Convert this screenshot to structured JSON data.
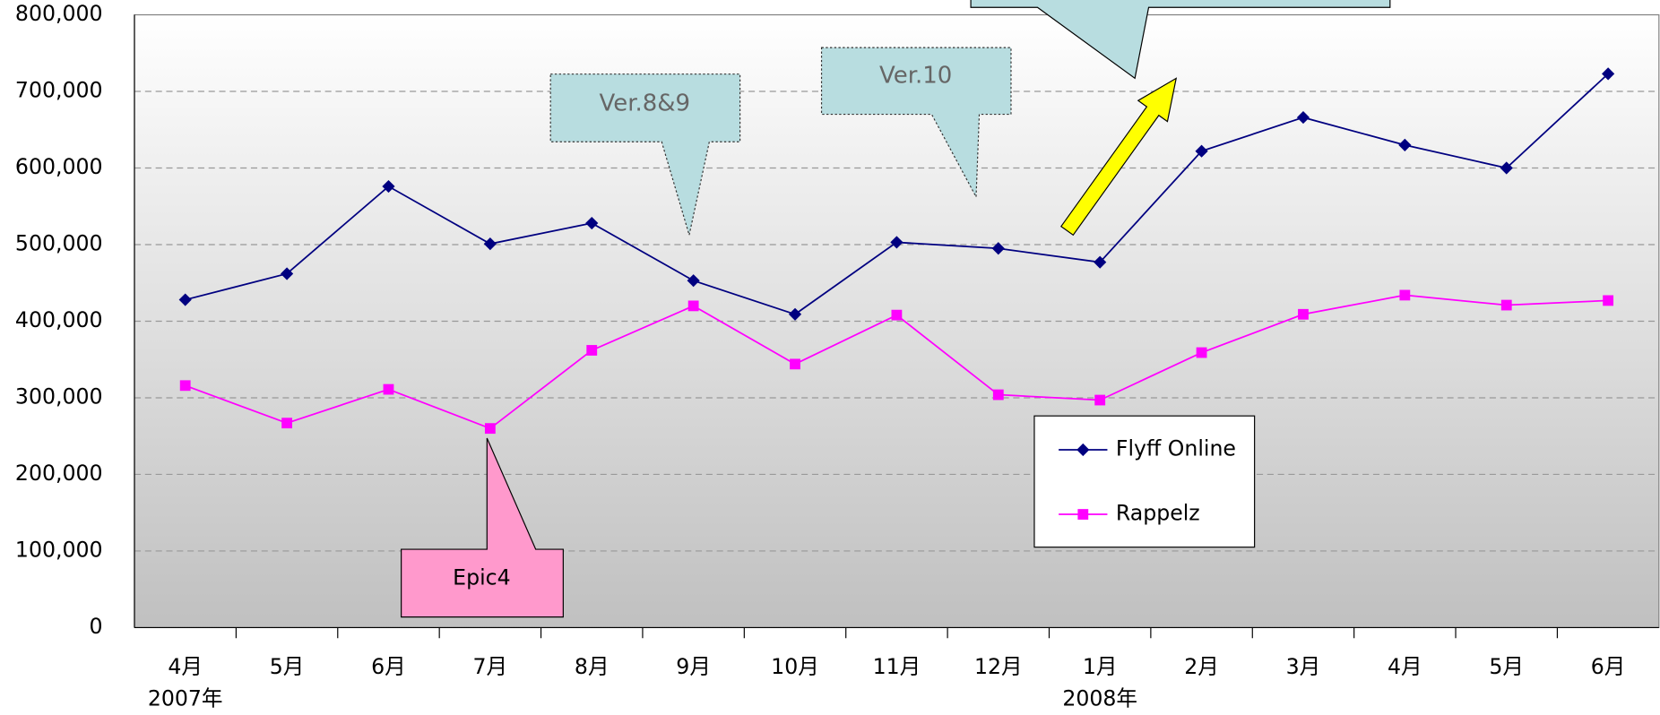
{
  "chart_data": {
    "type": "line",
    "categories": [
      "4月",
      "5月",
      "6月",
      "7月",
      "8月",
      "9月",
      "10月",
      "11月",
      "12月",
      "1月",
      "2月",
      "3月",
      "4月",
      "5月",
      "6月"
    ],
    "group_labels": [
      {
        "label": "2007年",
        "index": 0
      },
      {
        "label": "2008年",
        "index": 9
      }
    ],
    "series": [
      {
        "name": "Flyff Online",
        "color": "#000080",
        "marker": "diamond",
        "values": [
          428000,
          462000,
          576000,
          501000,
          528000,
          453000,
          409000,
          503000,
          495000,
          477000,
          622000,
          666000,
          630000,
          600000,
          723000
        ]
      },
      {
        "name": "Rappelz",
        "color": "#ff00ff",
        "marker": "square",
        "values": [
          316000,
          267000,
          311000,
          260000,
          362000,
          420000,
          344000,
          408000,
          304000,
          297000,
          359000,
          409000,
          434000,
          421000,
          427000
        ]
      }
    ],
    "ylim": [
      0,
      800000
    ],
    "yticks": [
      0,
      {
        "value": 100000,
        "label": "100,000"
      },
      {
        "value": 200000,
        "label": "200,000"
      },
      {
        "value": 300000,
        "label": "300,000"
      },
      {
        "value": 400000,
        "label": "400,000"
      },
      {
        "value": 500000,
        "label": "500,000"
      },
      {
        "value": 600000,
        "label": "600,000"
      },
      {
        "value": 700000,
        "label": "700,000"
      },
      {
        "value": 800000,
        "label": "800,000"
      }
    ],
    "grid": true,
    "annotations": [
      "Ver.8&9",
      "Ver.10",
      "Epic4"
    ]
  }
}
